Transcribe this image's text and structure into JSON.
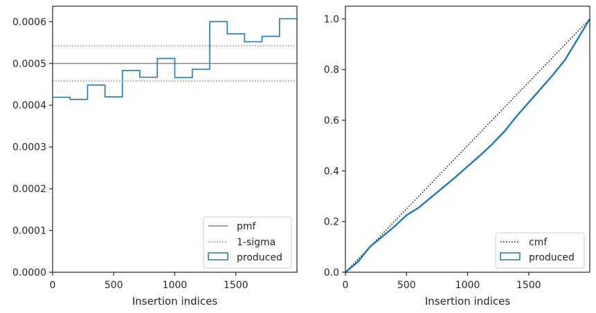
{
  "chart_data": [
    {
      "type": "line",
      "xlabel": "Insertion indices",
      "ylabel": "",
      "xlim": [
        0,
        2000
      ],
      "ylim": [
        0,
        0.000637
      ],
      "x_ticks": [
        0,
        500,
        1000,
        1500
      ],
      "x_tick_labels": [
        "0",
        "500",
        "1000",
        "1500"
      ],
      "y_ticks": [
        0,
        0.0001,
        0.0002,
        0.0003,
        0.0004,
        0.0005,
        0.0006
      ],
      "y_tick_labels": [
        "0.0000",
        "0.0001",
        "0.0002",
        "0.0003",
        "0.0004",
        "0.0005",
        "0.0006"
      ],
      "grid": false,
      "legend_position": "lower-right",
      "pmf": 0.0005,
      "sigma_band": [
        0.000458,
        0.000542
      ],
      "histogram": {
        "bin_edges": [
          0,
          143,
          286,
          429,
          571,
          714,
          857,
          1000,
          1143,
          1286,
          1429,
          1571,
          1714,
          1857,
          2000
        ],
        "values": [
          0.000419,
          0.000414,
          0.000448,
          0.00042,
          0.000483,
          0.000467,
          0.000512,
          0.000466,
          0.000486,
          0.0006,
          0.000571,
          0.000552,
          0.000565,
          0.000607
        ]
      },
      "series": [
        {
          "name": "pmf",
          "color": "#808080",
          "style": "solid"
        },
        {
          "name": "1-sigma",
          "color": "#808080",
          "style": "dotted"
        },
        {
          "name": "produced",
          "color": "#1f77b4",
          "style": "step"
        }
      ]
    },
    {
      "type": "line",
      "xlabel": "Insertion indices",
      "ylabel": "",
      "xlim": [
        0,
        2000
      ],
      "ylim": [
        0,
        1.05
      ],
      "x_ticks": [
        0,
        500,
        1000,
        1500
      ],
      "x_tick_labels": [
        "0",
        "500",
        "1000",
        "1500"
      ],
      "y_ticks": [
        0,
        0.2,
        0.4,
        0.6,
        0.8,
        1.0
      ],
      "y_tick_labels": [
        "0.0",
        "0.2",
        "0.4",
        "0.6",
        "0.8",
        "1.0"
      ],
      "grid": false,
      "legend_position": "lower-right",
      "cmf": {
        "x": [
          0,
          2000
        ],
        "y": [
          0,
          1
        ]
      },
      "produced": {
        "x": [
          0,
          100,
          200,
          300,
          400,
          500,
          600,
          700,
          800,
          900,
          1000,
          1100,
          1200,
          1300,
          1400,
          1500,
          1600,
          1700,
          1800,
          1900,
          2000
        ],
        "y": [
          0,
          0.04,
          0.1,
          0.14,
          0.18,
          0.225,
          0.255,
          0.295,
          0.335,
          0.375,
          0.418,
          0.46,
          0.505,
          0.555,
          0.615,
          0.67,
          0.725,
          0.78,
          0.84,
          0.92,
          1.0
        ]
      },
      "series": [
        {
          "name": "cmf",
          "color": "#000000",
          "style": "dotted"
        },
        {
          "name": "produced",
          "color": "#1f77b4",
          "style": "step"
        }
      ]
    }
  ]
}
